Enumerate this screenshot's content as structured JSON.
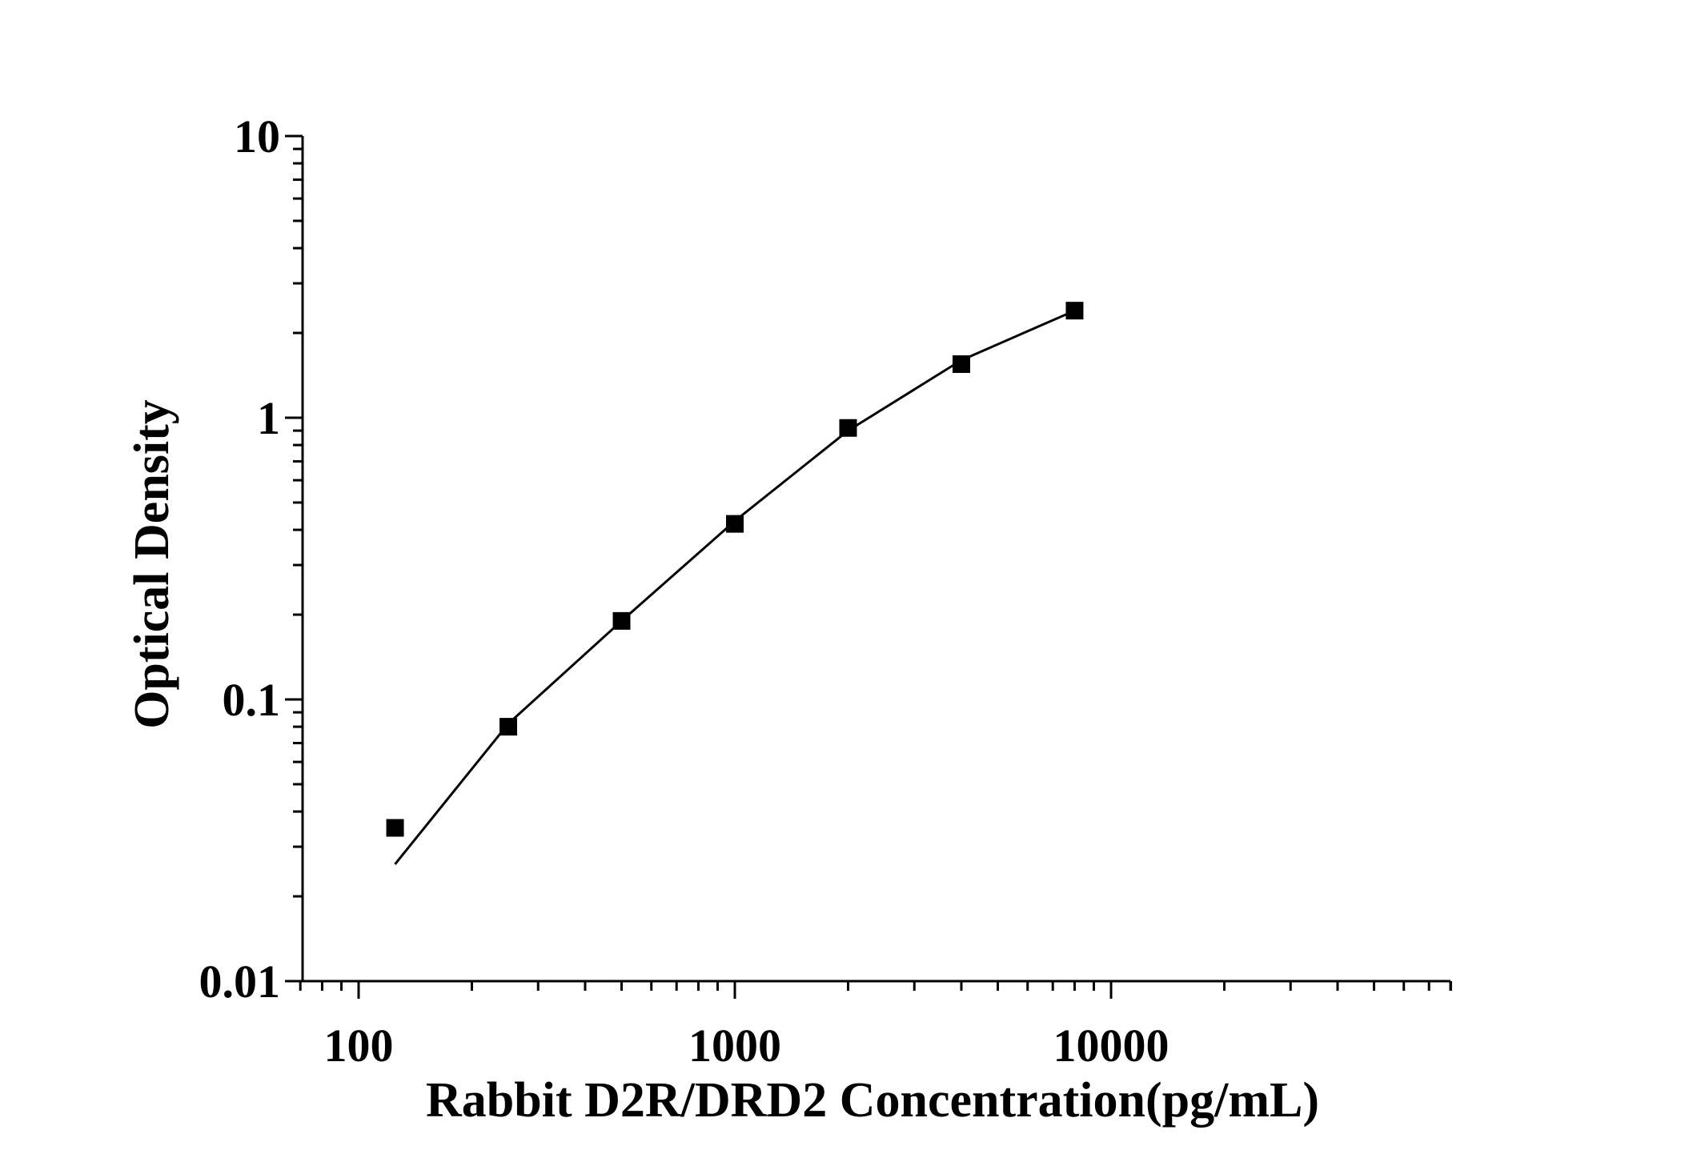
{
  "chart_data": {
    "type": "scatter",
    "title": "",
    "xlabel": "Rabbit D2R/DRD2 Concentration(pg/mL)",
    "ylabel": "Optical Density",
    "x_scale": "log",
    "y_scale": "log",
    "xlim": [
      70,
      80000
    ],
    "ylim": [
      0.01,
      10
    ],
    "x_ticks": [
      {
        "value": 100,
        "label": "100"
      },
      {
        "value": 1000,
        "label": "1000"
      },
      {
        "value": 10000,
        "label": "10000"
      }
    ],
    "y_ticks": [
      {
        "value": 0.01,
        "label": "0.01"
      },
      {
        "value": 0.1,
        "label": "0.1"
      },
      {
        "value": 1,
        "label": "1"
      },
      {
        "value": 10,
        "label": "10"
      }
    ],
    "grid": false,
    "legend": "none",
    "series": [
      {
        "marker": "square",
        "color": "#000000",
        "points": [
          {
            "x": 125,
            "y": 0.035
          },
          {
            "x": 250,
            "y": 0.08
          },
          {
            "x": 500,
            "y": 0.19
          },
          {
            "x": 1000,
            "y": 0.42
          },
          {
            "x": 2000,
            "y": 0.92
          },
          {
            "x": 4000,
            "y": 1.55
          },
          {
            "x": 8000,
            "y": 2.4
          }
        ]
      }
    ],
    "fit_curve": {
      "color": "#000000",
      "points": [
        {
          "x": 125,
          "y": 0.026
        },
        {
          "x": 250,
          "y": 0.082
        },
        {
          "x": 500,
          "y": 0.19
        },
        {
          "x": 1000,
          "y": 0.43
        },
        {
          "x": 2000,
          "y": 0.9
        },
        {
          "x": 4000,
          "y": 1.6
        },
        {
          "x": 8000,
          "y": 2.4
        }
      ]
    }
  }
}
